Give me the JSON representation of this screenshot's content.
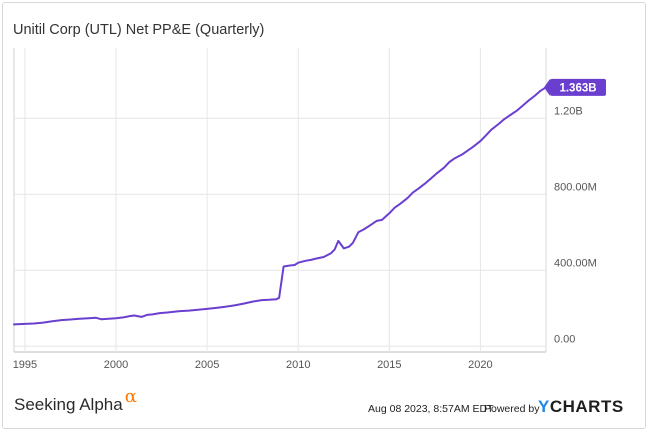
{
  "chart_data": {
    "type": "line",
    "title": "Unitil Corp (UTL) Net PP&E (Quarterly)",
    "xlabel": "",
    "ylabel": "",
    "x_ticks": [
      "1995",
      "2000",
      "2005",
      "2010",
      "2015",
      "2020"
    ],
    "y_ticks": [
      "0.00",
      "400.00M",
      "800.00M",
      "1.20B"
    ],
    "xlim": [
      1994.4,
      2023.6
    ],
    "ylim": [
      -30,
      1570
    ],
    "grid": true,
    "line_color": "#6a3fd0",
    "end_label": "1.363B",
    "series": [
      {
        "unit": "M",
        "x": [
          1994.4,
          1995.0,
          1995.5,
          1996.0,
          1996.5,
          1997.0,
          1997.5,
          1998.0,
          1998.5,
          1998.9,
          1999.2,
          1999.6,
          2000.0,
          2000.4,
          2000.7,
          2001.0,
          2001.4,
          2001.7,
          2002.0,
          2002.4,
          2002.8,
          2003.0,
          2003.5,
          2004.0,
          2004.5,
          2005.0,
          2005.5,
          2006.0,
          2006.5,
          2007.0,
          2007.5,
          2008.0,
          2008.4,
          2008.8,
          2008.95,
          2009.2,
          2009.5,
          2009.8,
          2010.0,
          2010.4,
          2010.7,
          2011.0,
          2011.4,
          2011.8,
          2012.0,
          2012.2,
          2012.5,
          2012.8,
          2013.0,
          2013.3,
          2013.6,
          2014.0,
          2014.3,
          2014.6,
          2015.0,
          2015.3,
          2015.6,
          2016.0,
          2016.3,
          2016.6,
          2017.0,
          2017.3,
          2017.6,
          2018.0,
          2018.3,
          2018.6,
          2019.0,
          2019.3,
          2019.6,
          2020.0,
          2020.3,
          2020.6,
          2021.0,
          2021.3,
          2021.6,
          2022.0,
          2022.3,
          2022.6,
          2023.0,
          2023.3,
          2023.6
        ],
        "values": [
          115,
          118,
          120,
          125,
          132,
          138,
          141,
          145,
          148,
          150,
          142,
          145,
          148,
          152,
          158,
          162,
          155,
          165,
          168,
          175,
          178,
          180,
          185,
          188,
          192,
          197,
          202,
          208,
          215,
          225,
          235,
          243,
          245,
          248,
          255,
          420,
          425,
          428,
          440,
          450,
          455,
          462,
          470,
          490,
          510,
          555,
          515,
          525,
          545,
          600,
          615,
          640,
          660,
          665,
          700,
          730,
          750,
          780,
          810,
          830,
          860,
          885,
          910,
          940,
          970,
          990,
          1010,
          1030,
          1050,
          1080,
          1110,
          1140,
          1170,
          1195,
          1215,
          1240,
          1265,
          1290,
          1320,
          1345,
          1363
        ]
      }
    ]
  },
  "footer": {
    "brand_left": "Seeking Alpha",
    "brand_left_symbol": "α",
    "timestamp": "Aug 08 2023, 8:57AM EDT.",
    "powered_by": "Powered by",
    "brand_right_y": "Y",
    "brand_right_rest": "CHARTS"
  }
}
